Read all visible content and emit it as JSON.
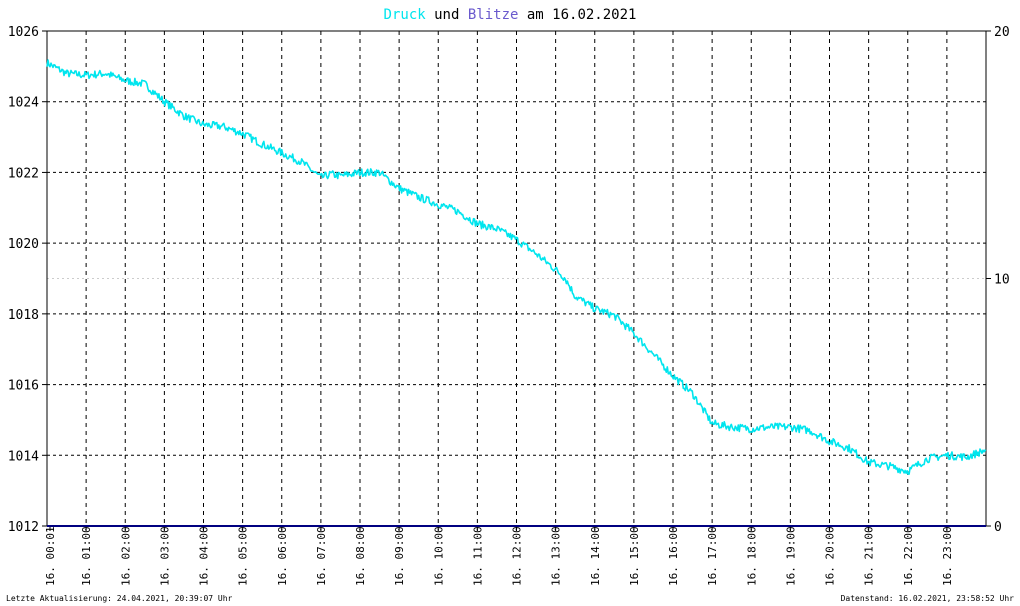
{
  "title": {
    "part1": "Druck",
    "part2": " und ",
    "part3": "Blitze",
    "part4": " am 16.02.2021"
  },
  "footer": {
    "left": "Letzte Aktualisierung: 24.04.2021, 20:39:07 Uhr",
    "right": "Datenstand: 16.02.2021, 23:58:52 Uhr"
  },
  "colors": {
    "druck": "#00e5ee",
    "blitze": "#6a5acd",
    "text": "#000000",
    "baseline": "#000080"
  },
  "chart_data": {
    "type": "line",
    "title": "Druck und Blitze am 16.02.2021",
    "x_ticks": [
      "16. 00:01",
      "16. 01:00",
      "16. 02:00",
      "16. 03:00",
      "16. 04:00",
      "16. 05:00",
      "16. 06:00",
      "16. 07:00",
      "16. 08:00",
      "16. 09:00",
      "16. 10:00",
      "16. 11:00",
      "16. 12:00",
      "16. 13:00",
      "16. 14:00",
      "16. 15:00",
      "16. 16:00",
      "16. 17:00",
      "16. 18:00",
      "16. 19:00",
      "16. 20:00",
      "16. 21:00",
      "16. 22:00",
      "16. 23:00"
    ],
    "y_left": {
      "min": 1012,
      "max": 1026,
      "ticks": [
        1012,
        1014,
        1016,
        1018,
        1020,
        1022,
        1024,
        1026
      ]
    },
    "y_right": {
      "min": 0,
      "max": 20,
      "ticks": [
        0,
        10,
        20
      ]
    },
    "grid": true,
    "series": [
      {
        "name": "Druck",
        "axis": "left",
        "x_hours": [
          0,
          0.5,
          1,
          1.5,
          2,
          2.5,
          3,
          3.5,
          4,
          4.5,
          5,
          5.5,
          6,
          6.5,
          7,
          7.25,
          7.5,
          8,
          8.5,
          9,
          9.5,
          10,
          10.5,
          11,
          11.5,
          12,
          12.5,
          13,
          13.25,
          13.5,
          14,
          14.5,
          15,
          15.5,
          16,
          16.5,
          17,
          17.5,
          18,
          18.5,
          19,
          19.5,
          20,
          20.5,
          21,
          21.5,
          22,
          22.5,
          23,
          23.5,
          24
        ],
        "values": [
          1025.1,
          1024.8,
          1024.75,
          1024.8,
          1024.6,
          1024.5,
          1024.0,
          1023.6,
          1023.35,
          1023.3,
          1023.1,
          1022.8,
          1022.55,
          1022.3,
          1021.85,
          1021.95,
          1021.9,
          1022.0,
          1022.0,
          1021.55,
          1021.3,
          1021.1,
          1020.9,
          1020.55,
          1020.4,
          1020.1,
          1019.7,
          1019.25,
          1019.0,
          1018.5,
          1018.15,
          1017.95,
          1017.45,
          1016.85,
          1016.25,
          1015.75,
          1014.9,
          1014.8,
          1014.75,
          1014.8,
          1014.8,
          1014.7,
          1014.4,
          1014.2,
          1013.8,
          1013.7,
          1013.55,
          1013.9,
          1014.0,
          1013.95,
          1014.15
        ]
      },
      {
        "name": "Blitze",
        "axis": "right",
        "x_hours": [
          0,
          24
        ],
        "values": [
          0,
          0
        ]
      }
    ]
  }
}
